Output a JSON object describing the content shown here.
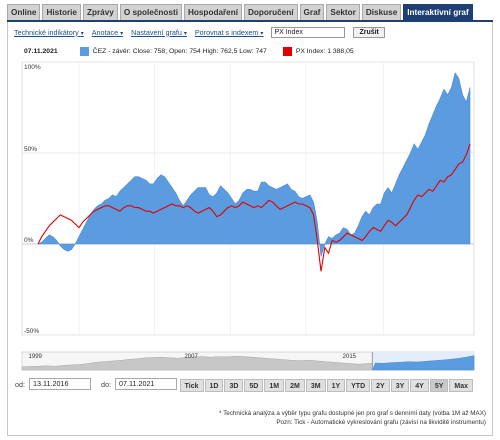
{
  "tabs": [
    {
      "label": "Online"
    },
    {
      "label": "Historie"
    },
    {
      "label": "Zprávy"
    },
    {
      "label": "O společnosti"
    },
    {
      "label": "Hospodaření"
    },
    {
      "label": "Doporučení"
    },
    {
      "label": "Graf"
    },
    {
      "label": "Sektor"
    },
    {
      "label": "Diskuse"
    },
    {
      "label": "Interaktivní graf"
    }
  ],
  "active_tab": "Interaktivní graf",
  "toolbar": {
    "technical_indicators": "Technické indikátory",
    "annotations": "Anotace",
    "chart_settings": "Nastavení grafu",
    "compare_with_index": "Porovnat s indexem",
    "index_input_value": "PX Index",
    "reset_button": "Zrušit"
  },
  "legend": {
    "date": "07.11.2021",
    "stock": {
      "text": "ČEZ - závěr: Close: 758; Open: 754 High: 762,5 Low: 747",
      "color": "#5b9be0"
    },
    "index": {
      "text": "PX Index: 1 388,05",
      "color": "#e30000"
    }
  },
  "chart_data": {
    "type": "area",
    "x_start": "13.11.2016",
    "x_end": "07.11.2021",
    "ylim": [
      -50,
      100
    ],
    "y_ticks": [
      "100%",
      "50%",
      "0%",
      "-50%"
    ],
    "grid": true,
    "series": [
      {
        "name": "ČEZ - závěr",
        "style": "area",
        "color": "#5b9be0",
        "values": [
          0,
          1,
          3,
          5,
          4,
          2,
          -1,
          -3,
          -4,
          -3,
          0,
          4,
          8,
          12,
          16,
          19,
          21,
          22,
          24,
          25,
          27,
          26,
          29,
          31,
          33,
          35,
          37,
          37,
          36,
          35,
          33,
          33,
          36,
          38,
          37,
          34,
          31,
          28,
          24,
          21,
          24,
          27,
          29,
          31,
          31,
          31,
          27,
          26,
          28,
          32,
          30,
          28,
          25,
          22,
          24,
          28,
          30,
          30,
          29,
          29,
          34,
          34,
          32,
          31,
          30,
          31,
          32,
          33,
          30,
          29,
          26,
          25,
          26,
          27,
          23,
          12,
          -7,
          0,
          4,
          3,
          5,
          6,
          9,
          8,
          5,
          6,
          10,
          15,
          18,
          16,
          20,
          22,
          22,
          28,
          31,
          28,
          33,
          38,
          42,
          46,
          50,
          55,
          52,
          56,
          60,
          66,
          71,
          76,
          80,
          85,
          82,
          86,
          94,
          91,
          82,
          78,
          86
        ]
      },
      {
        "name": "PX Index",
        "style": "line",
        "color": "#e30000",
        "values": [
          0,
          4,
          7,
          10,
          12,
          14,
          16,
          15,
          14,
          13,
          11,
          9,
          12,
          14,
          16,
          18,
          19,
          20,
          21,
          21,
          20,
          19,
          18,
          20,
          21,
          21,
          20,
          20,
          19,
          18,
          18,
          17,
          18,
          19,
          20,
          21,
          22,
          21,
          21,
          20,
          21,
          20,
          18,
          17,
          18,
          19,
          20,
          18,
          15,
          16,
          18,
          20,
          21,
          20,
          21,
          23,
          22,
          21,
          20,
          21,
          20,
          22,
          24,
          23,
          21,
          19,
          20,
          21,
          22,
          23,
          22,
          22,
          21,
          20,
          16,
          2,
          -15,
          -2,
          -5,
          2,
          1,
          2,
          4,
          6,
          5,
          4,
          3,
          2,
          4,
          7,
          9,
          8,
          7,
          10,
          13,
          12,
          10,
          12,
          14,
          16,
          20,
          24,
          27,
          26,
          28,
          30,
          29,
          32,
          35,
          34,
          37,
          38,
          41,
          44,
          45,
          49,
          55
        ]
      }
    ],
    "navigator": {
      "labels": [
        "1999",
        "2007",
        "2015"
      ],
      "values": [
        10,
        11,
        12,
        13,
        12,
        14,
        16,
        17,
        20,
        24,
        26,
        28,
        30,
        33,
        35,
        38,
        39,
        40,
        38,
        37,
        39,
        41,
        42,
        40,
        42,
        41,
        43,
        42,
        40,
        38,
        36,
        34,
        32,
        30,
        29,
        31,
        28,
        26,
        24,
        22,
        20,
        18,
        20,
        22,
        21,
        23,
        24,
        26,
        25,
        27,
        29,
        31,
        33,
        36,
        40,
        45
      ]
    }
  },
  "range": {
    "from_label": "od:",
    "from_value": "13.11.2016",
    "to_label": "do:",
    "to_value": "07.11.2021"
  },
  "periods": [
    "Tick",
    "1D",
    "3D",
    "5D",
    "1M",
    "2M",
    "3M",
    "1Y",
    "YTD",
    "2Y",
    "3Y",
    "4Y",
    "5Y",
    "Max"
  ],
  "selected_period": "5Y",
  "notes": {
    "line1": "* Technická analýza a výběr typu grafu dostupné jen pro graf s denními daty (volba 1M až MAX)",
    "line2": "Pozn: Tick - Automatické vykreslování grafu (závisí na likviditě instrumentu)"
  }
}
